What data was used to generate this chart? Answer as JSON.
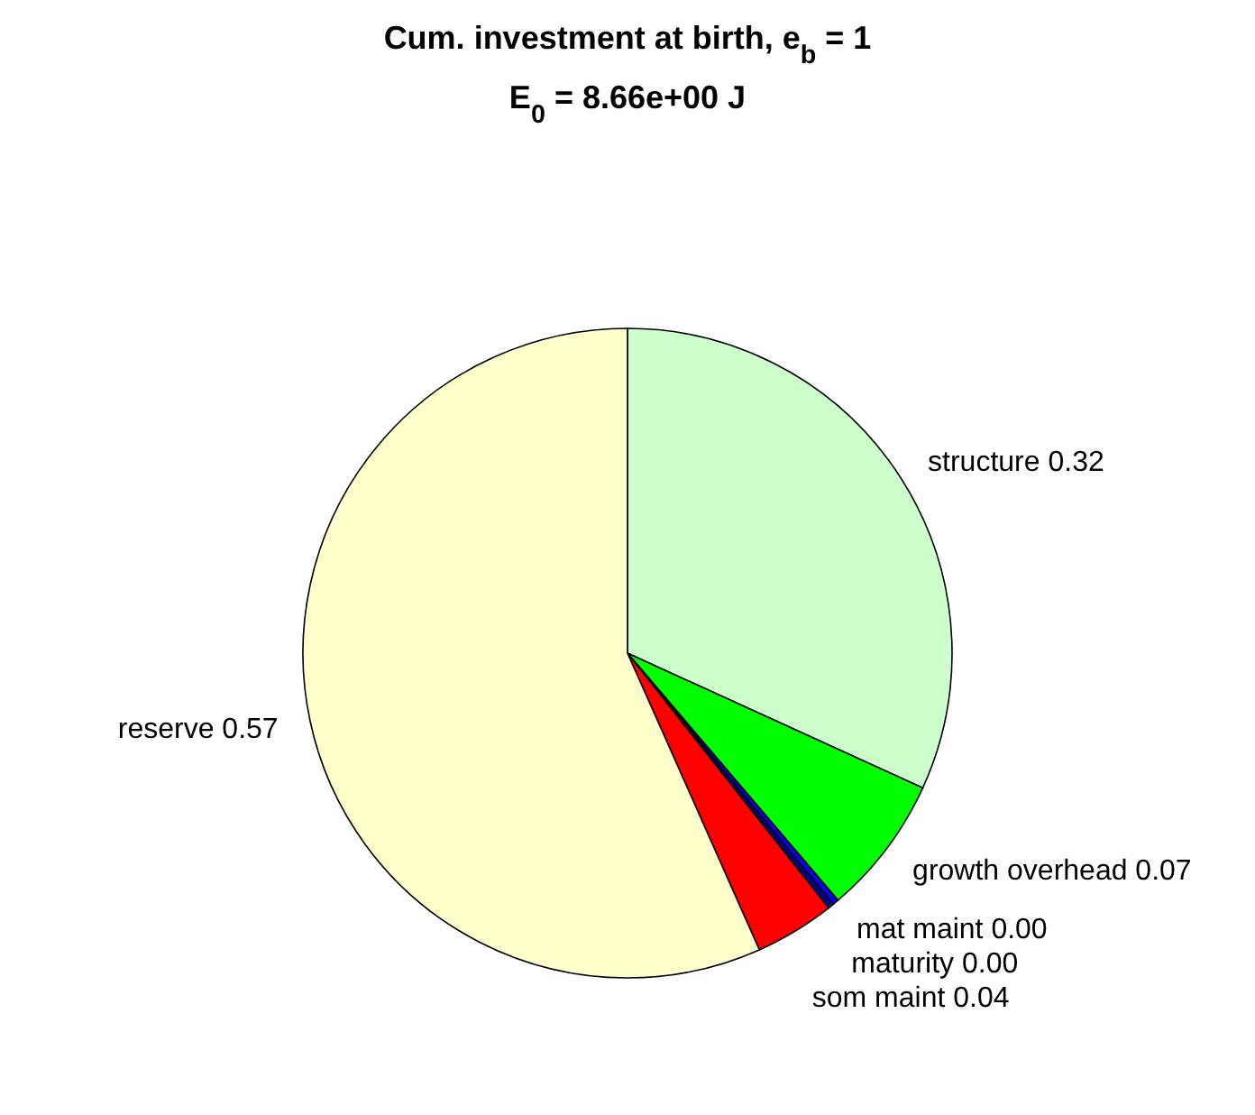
{
  "chart_data": {
    "type": "pie",
    "title": "Cum. investment at birth, e$_{b}$ = 1",
    "subtitle": "E$_{0}$ = 8.66e+00 J",
    "categories": [
      "structure",
      "growth overhead",
      "mat maint",
      "maturity",
      "som maint",
      "reserve"
    ],
    "values": [
      0.32,
      0.07,
      0.003,
      0.003,
      0.04,
      0.57
    ],
    "value_labels": [
      "0.32",
      "0.07",
      "0.00",
      "0.00",
      "0.04",
      "0.57"
    ],
    "colors": [
      "#ccffcc",
      "#00ff00",
      "#0000ff",
      "#000080",
      "#ff0000",
      "#ffffcc"
    ]
  }
}
